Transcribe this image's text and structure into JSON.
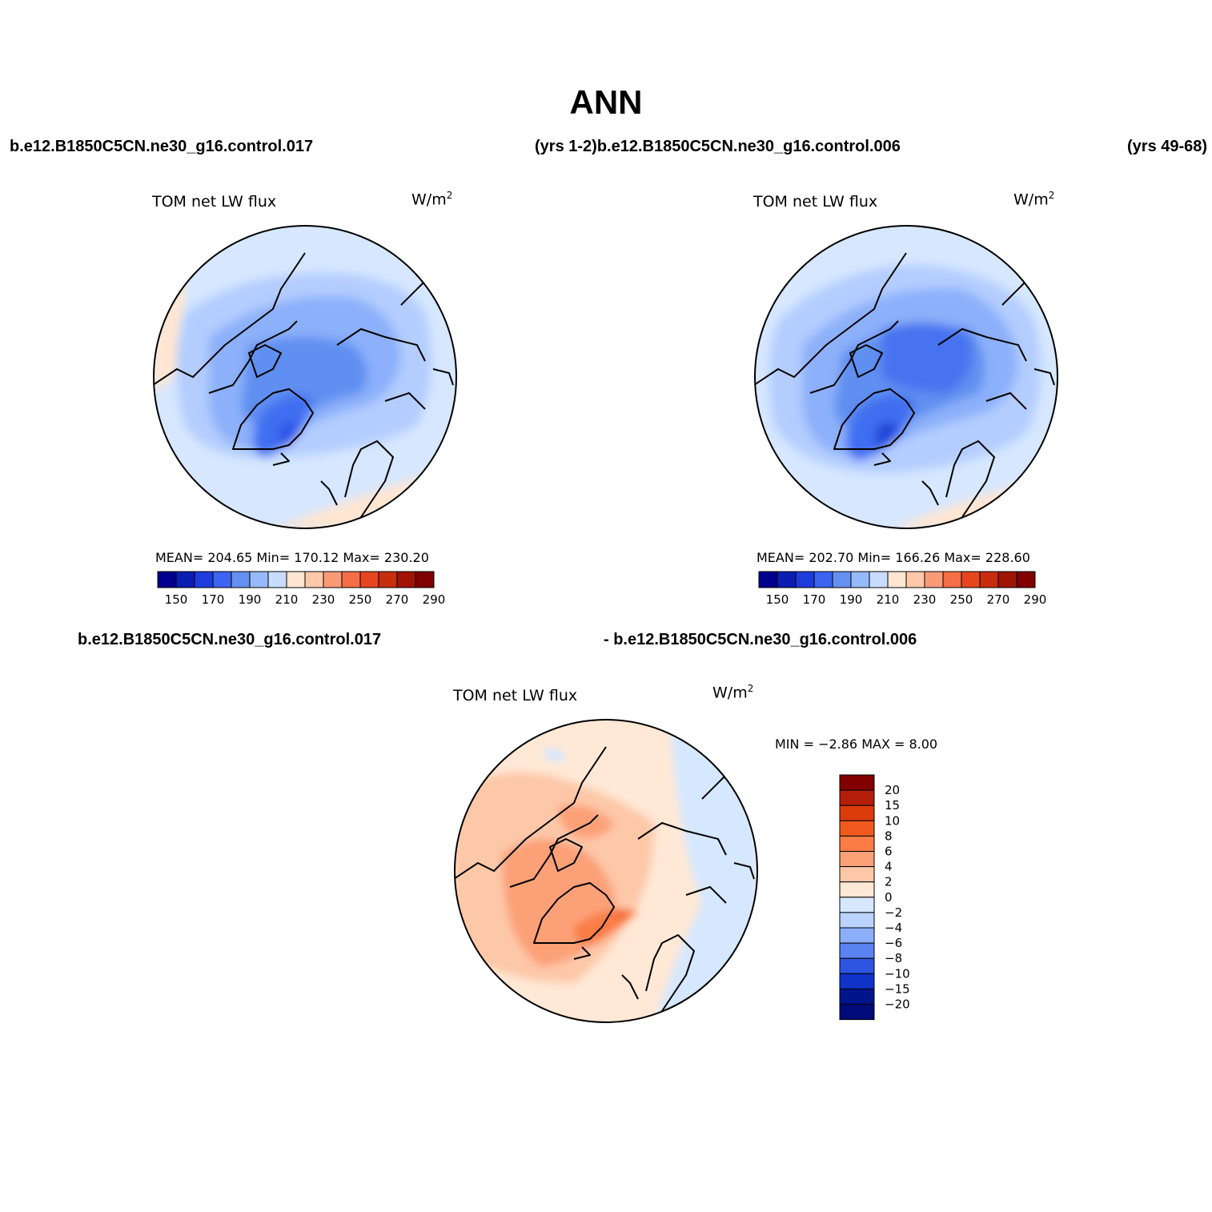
{
  "page": {
    "title": "ANN"
  },
  "panels": [
    {
      "case_left": "b.e12.B1850C5CN.ne30_g16.control.017",
      "case_right": "(yrs 1-2)b.e12.B1850C5CN.ne30_g16.control.006",
      "plot_title": "TOM  net  LW  flux",
      "units": "W/m",
      "units_sup": "2",
      "stats": "MEAN=  204.65    Min=  170.12    Max=  230.20",
      "colorbar_labels": [
        "150",
        "170",
        "190",
        "210",
        "230",
        "250",
        "270",
        "290"
      ]
    },
    {
      "case_right": "(yrs 49-68)",
      "plot_title": "TOM  net  LW  flux",
      "units": "W/m",
      "units_sup": "2",
      "stats": "MEAN=  202.70    Min=  166.26    Max=  228.60",
      "colorbar_labels": [
        "150",
        "170",
        "190",
        "210",
        "230",
        "250",
        "270",
        "290"
      ]
    },
    {
      "case_left": "b.e12.B1850C5CN.ne30_g16.control.017",
      "case_right": "- b.e12.B1850C5CN.ne30_g16.control.006",
      "plot_title": "TOM  net  LW  flux",
      "units": "W/m",
      "units_sup": "2",
      "stats": "MIN  =    −2.86  MAX  =     8.00",
      "colorbar_labels": [
        "20",
        "15",
        "10",
        "8",
        "6",
        "4",
        "2",
        "0",
        "−2",
        "−4",
        "−6",
        "−8",
        "−10",
        "−15",
        "−20"
      ]
    }
  ],
  "colors": {
    "abs_scale": [
      "#00008c",
      "#0a1eb4",
      "#1e3cdc",
      "#3c64f0",
      "#6490f0",
      "#96b9fa",
      "#c8dcff",
      "#ffe6d2",
      "#ffc8aa",
      "#fa9b78",
      "#f56e46",
      "#e6461e",
      "#c82d0f",
      "#a01405",
      "#800000"
    ],
    "diff_scale": [
      "#800000",
      "#b41e0a",
      "#dc3c0a",
      "#f05a1e",
      "#fa7d46",
      "#fca078",
      "#fdc8a8",
      "#ffe8d6",
      "#d6e8ff",
      "#bad3ff",
      "#8caffa",
      "#5a82f0",
      "#2d55e1",
      "#0f32c8",
      "#00148c",
      "#000a78"
    ]
  }
}
